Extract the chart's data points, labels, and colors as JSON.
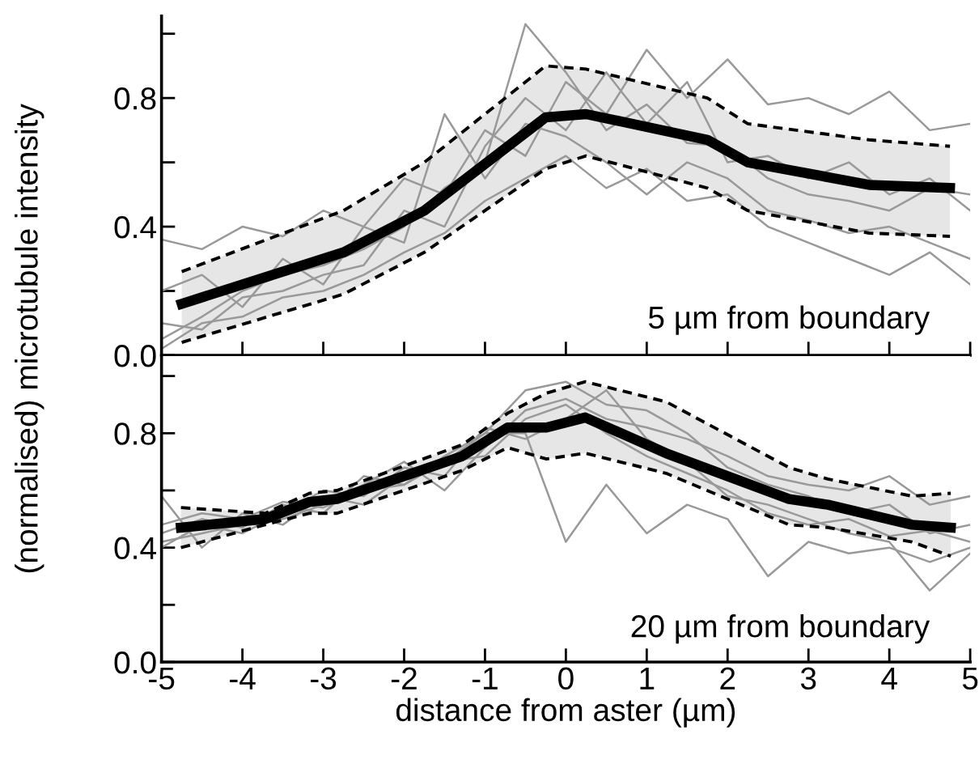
{
  "chart_data": [
    {
      "type": "line",
      "ylabel": "(normalised) microtubule intensity",
      "x": [
        -5,
        -4.5,
        -4,
        -3.5,
        -3,
        -2.5,
        -2,
        -1.5,
        -1,
        -0.5,
        0,
        0.5,
        1,
        1.5,
        2,
        2.5,
        3,
        3.5,
        4,
        4.5,
        5
      ],
      "xlim": [
        -5,
        5
      ],
      "ylim": [
        0,
        1.055
      ],
      "xticks": [
        -5,
        -4,
        -3,
        -2,
        -1,
        0,
        1,
        2,
        3,
        4,
        5
      ],
      "tick_labels": "y",
      "grid": false,
      "marker": "none",
      "annotations": [
        "5 µm from boundary"
      ],
      "yticks": [
        {
          "value": 0,
          "label": "0.0"
        },
        {
          "value": 0.2,
          "label": null
        },
        {
          "value": 0.4,
          "label": "0.4"
        },
        {
          "value": 0.6,
          "label": null
        },
        {
          "value": 0.8,
          "label": "0.8"
        },
        {
          "value": 1.0,
          "label": null
        }
      ],
      "series": [
        {
          "color": "#999999",
          "values": [
            0.36,
            0.33,
            0.4,
            0.37,
            0.45,
            0.4,
            0.55,
            0.5,
            0.7,
            0.62,
            0.85,
            0.75,
            0.95,
            0.8,
            0.92,
            0.78,
            0.8,
            0.75,
            0.82,
            0.7,
            0.72
          ]
        },
        {
          "color": "#999999",
          "values": [
            0.05,
            0.12,
            0.2,
            0.25,
            0.28,
            0.33,
            0.4,
            0.52,
            0.6,
            1.03,
            0.88,
            0.7,
            0.78,
            0.66,
            0.65,
            0.55,
            0.5,
            0.48,
            0.45,
            0.52,
            0.5
          ]
        },
        {
          "color": "#999999",
          "values": [
            0.2,
            0.25,
            0.15,
            0.3,
            0.22,
            0.4,
            0.35,
            0.75,
            0.55,
            0.72,
            0.68,
            0.6,
            0.5,
            0.6,
            0.55,
            0.45,
            0.42,
            0.38,
            0.4,
            0.35,
            0.3
          ]
        },
        {
          "color": "#999999",
          "values": [
            0.1,
            0.08,
            0.18,
            0.2,
            0.25,
            0.28,
            0.45,
            0.4,
            0.65,
            0.8,
            0.7,
            0.88,
            0.72,
            0.85,
            0.6,
            0.62,
            0.55,
            0.6,
            0.5,
            0.55,
            0.45
          ]
        },
        {
          "color": "#999999",
          "values": [
            0.02,
            0.1,
            0.12,
            0.18,
            0.2,
            0.25,
            0.32,
            0.38,
            0.48,
            0.55,
            0.62,
            0.52,
            0.58,
            0.48,
            0.5,
            0.4,
            0.35,
            0.3,
            0.25,
            0.32,
            0.22
          ]
        },
        {
          "color": "#000000",
          "x": [
            -4.75,
            -2.75,
            -1.75,
            -0.25,
            0.25,
            1.75,
            2.25,
            3.75,
            4.75
          ],
          "values": [
            0.16,
            0.32,
            0.45,
            0.74,
            0.75,
            0.67,
            0.6,
            0.53,
            0.52
          ],
          "lower": [
            0.04,
            0.19,
            0.32,
            0.58,
            0.62,
            0.52,
            0.45,
            0.38,
            0.37
          ],
          "upper": [
            0.26,
            0.45,
            0.6,
            0.9,
            0.89,
            0.8,
            0.72,
            0.67,
            0.65
          ]
        },
        {
          "color": "#000000",
          "line_style": "dashed",
          "x": [
            -4.75,
            -2.75,
            -1.75,
            -0.25,
            0.25,
            1.75,
            2.25,
            3.75,
            4.75
          ],
          "values": [
            0.04,
            0.19,
            0.32,
            0.58,
            0.62,
            0.52,
            0.45,
            0.38,
            0.37
          ]
        },
        {
          "color": "#000000",
          "line_style": "dashed",
          "x": [
            -4.75,
            -2.75,
            -1.75,
            -0.25,
            0.25,
            1.75,
            2.25,
            3.75,
            4.75
          ],
          "values": [
            0.26,
            0.45,
            0.6,
            0.9,
            0.89,
            0.8,
            0.72,
            0.67,
            0.65
          ]
        }
      ]
    },
    {
      "type": "line",
      "xlabel": "distance from aster (µm)",
      "x": [
        -5,
        -4.5,
        -4,
        -3.5,
        -3,
        -2.5,
        -2,
        -1.5,
        -1,
        -0.5,
        0,
        0.5,
        1,
        1.5,
        2,
        2.5,
        3,
        3.5,
        4,
        4.5,
        5
      ],
      "xlim": [
        -5,
        5
      ],
      "ylim": [
        0,
        1.07
      ],
      "xticks": [
        -5,
        -4,
        -3,
        -2,
        -1,
        0,
        1,
        2,
        3,
        4,
        5
      ],
      "grid": false,
      "marker": "none",
      "annotations": [
        "20 µm from boundary"
      ],
      "yticks": [
        {
          "value": 0,
          "label": "0.0"
        },
        {
          "value": 0.2,
          "label": null
        },
        {
          "value": 0.4,
          "label": "0.4"
        },
        {
          "value": 0.6,
          "label": null
        },
        {
          "value": 0.8,
          "label": "0.8"
        },
        {
          "value": 1.0,
          "label": null
        }
      ],
      "series": [
        {
          "color": "#999999",
          "values": [
            0.42,
            0.45,
            0.48,
            0.5,
            0.55,
            0.62,
            0.7,
            0.6,
            0.75,
            0.88,
            0.92,
            0.85,
            0.82,
            0.78,
            0.72,
            0.65,
            0.62,
            0.6,
            0.65,
            0.55,
            0.58
          ]
        },
        {
          "color": "#999999",
          "values": [
            0.58,
            0.4,
            0.52,
            0.48,
            0.58,
            0.55,
            0.65,
            0.7,
            0.8,
            0.8,
            0.42,
            0.62,
            0.45,
            0.55,
            0.5,
            0.3,
            0.42,
            0.38,
            0.4,
            0.35,
            0.4
          ]
        },
        {
          "color": "#999999",
          "values": [
            0.45,
            0.5,
            0.47,
            0.55,
            0.52,
            0.65,
            0.62,
            0.72,
            0.8,
            0.95,
            0.98,
            0.9,
            0.88,
            0.8,
            0.68,
            0.62,
            0.58,
            0.52,
            0.55,
            0.45,
            0.48
          ]
        },
        {
          "color": "#999999",
          "values": [
            0.4,
            0.48,
            0.45,
            0.52,
            0.6,
            0.58,
            0.68,
            0.65,
            0.82,
            0.78,
            0.85,
            0.95,
            0.78,
            0.7,
            0.58,
            0.55,
            0.5,
            0.45,
            0.42,
            0.25,
            0.38
          ]
        },
        {
          "color": "#999999",
          "values": [
            0.48,
            0.52,
            0.5,
            0.56,
            0.54,
            0.6,
            0.62,
            0.7,
            0.72,
            0.85,
            0.9,
            0.8,
            0.72,
            0.66,
            0.6,
            0.52,
            0.48,
            0.5,
            0.44,
            0.46,
            0.42
          ]
        },
        {
          "color": "#000000",
          "x": [
            -4.76,
            -3.72,
            -3.17,
            -2.83,
            -1.28,
            -0.72,
            -0.24,
            0.24,
            1.24,
            2.76,
            3.24,
            4.28,
            4.76
          ],
          "values": [
            0.47,
            0.5,
            0.56,
            0.57,
            0.72,
            0.82,
            0.82,
            0.855,
            0.73,
            0.57,
            0.55,
            0.48,
            0.47
          ],
          "lower": [
            0.4,
            0.48,
            0.52,
            0.52,
            0.67,
            0.75,
            0.71,
            0.73,
            0.66,
            0.48,
            0.47,
            0.42,
            0.37
          ],
          "upper": [
            0.54,
            0.52,
            0.59,
            0.6,
            0.76,
            0.87,
            0.94,
            0.98,
            0.91,
            0.68,
            0.64,
            0.58,
            0.59
          ]
        },
        {
          "color": "#000000",
          "line_style": "dashed",
          "x": [
            -4.76,
            -3.72,
            -3.17,
            -2.83,
            -1.28,
            -0.72,
            -0.24,
            0.24,
            1.24,
            2.76,
            3.24,
            4.28,
            4.76
          ],
          "values": [
            0.4,
            0.48,
            0.52,
            0.52,
            0.67,
            0.75,
            0.71,
            0.73,
            0.66,
            0.48,
            0.47,
            0.42,
            0.37
          ]
        },
        {
          "color": "#000000",
          "line_style": "dashed",
          "x": [
            -4.76,
            -3.72,
            -3.17,
            -2.83,
            -1.28,
            -0.72,
            -0.24,
            0.24,
            1.24,
            2.76,
            3.24,
            4.28,
            4.76
          ],
          "values": [
            0.54,
            0.52,
            0.59,
            0.6,
            0.76,
            0.87,
            0.94,
            0.98,
            0.91,
            0.68,
            0.64,
            0.58,
            0.59
          ]
        }
      ]
    }
  ]
}
